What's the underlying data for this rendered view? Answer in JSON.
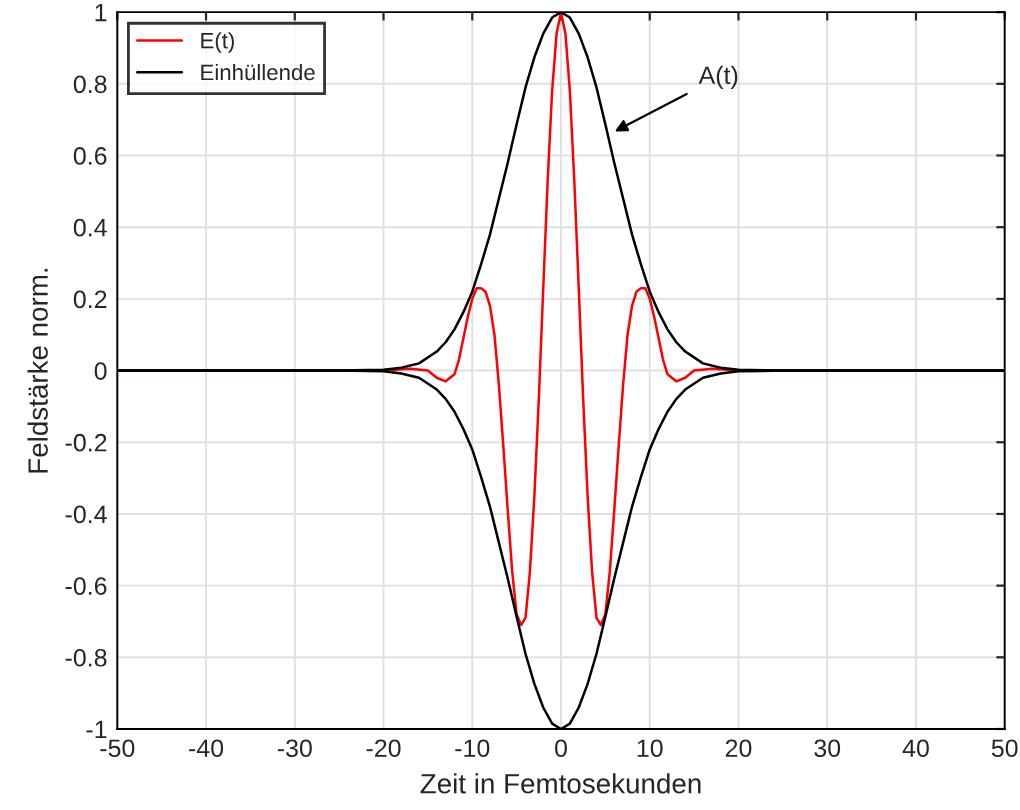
{
  "chart_data": {
    "type": "line",
    "xlabel": "Zeit in Femtosekunden",
    "ylabel": "Feldstärke norm.",
    "xlim": [
      -50,
      50
    ],
    "xticks": [
      -50,
      -40,
      -30,
      -20,
      -10,
      0,
      10,
      20,
      30,
      40,
      50
    ],
    "ylim": [
      -1,
      1
    ],
    "yticks": [
      -1,
      -0.8,
      -0.6,
      -0.4,
      -0.2,
      0,
      0.2,
      0.4,
      0.6,
      0.8,
      1
    ],
    "grid": true,
    "legend": "top left",
    "line_style": "solid",
    "marker": "none",
    "annotations": [
      {
        "text": "A(t)",
        "x": 5.5,
        "y": 0.66
      }
    ],
    "series": [
      {
        "name": "E(t)",
        "color": "#ff0000",
        "x": [
          -50,
          -25,
          -20,
          -17,
          -15,
          -14,
          -13,
          -12,
          -11.5,
          -11,
          -10.5,
          -10,
          -9.5,
          -9,
          -8.5,
          -8,
          -7.5,
          -7,
          -6.5,
          -6,
          -5.5,
          -5,
          -4.5,
          -4,
          -3.5,
          -3,
          -2.5,
          -2,
          -1.5,
          -1,
          -0.5,
          0,
          0.5,
          1,
          1.5,
          2,
          2.5,
          3,
          3.5,
          4,
          4.5,
          5,
          5.5,
          6,
          6.5,
          7,
          7.5,
          8,
          8.5,
          9,
          9.5,
          10,
          10.5,
          11,
          11.5,
          12,
          13,
          14,
          15,
          17,
          20,
          25,
          50
        ],
        "values": [
          0,
          0,
          0,
          0.005,
          0,
          -0.02,
          -0.03,
          -0.01,
          0.03,
          0.09,
          0.15,
          0.2,
          0.23,
          0.23,
          0.22,
          0.18,
          0.1,
          -0.04,
          -0.21,
          -0.39,
          -0.56,
          -0.68,
          -0.71,
          -0.69,
          -0.56,
          -0.35,
          -0.08,
          0.23,
          0.53,
          0.78,
          0.94,
          1,
          0.94,
          0.78,
          0.53,
          0.23,
          -0.08,
          -0.35,
          -0.56,
          -0.69,
          -0.71,
          -0.68,
          -0.56,
          -0.39,
          -0.21,
          -0.04,
          0.1,
          0.18,
          0.22,
          0.23,
          0.23,
          0.2,
          0.15,
          0.09,
          0.03,
          -0.01,
          -0.03,
          -0.02,
          0,
          0.005,
          0,
          0,
          0
        ]
      },
      {
        "name": "Einhüllende",
        "color": "#000000",
        "x": [
          -50,
          -25,
          -20,
          -18,
          -16,
          -14,
          -13,
          -12,
          -11,
          -10,
          -9,
          -8,
          -7,
          -6,
          -5,
          -4,
          -3,
          -2,
          -1,
          0,
          1,
          2,
          3,
          4,
          5,
          6,
          7,
          8,
          9,
          10,
          11,
          12,
          13,
          14,
          16,
          18,
          20,
          25,
          50
        ],
        "values": [
          0,
          0,
          0.002,
          0.008,
          0.02,
          0.053,
          0.079,
          0.115,
          0.163,
          0.22,
          0.297,
          0.38,
          0.48,
          0.58,
          0.687,
          0.79,
          0.874,
          0.94,
          0.985,
          1,
          0.985,
          0.94,
          0.874,
          0.79,
          0.687,
          0.58,
          0.48,
          0.38,
          0.297,
          0.22,
          0.163,
          0.115,
          0.079,
          0.053,
          0.02,
          0.008,
          0.002,
          0,
          0
        ]
      },
      {
        "color": "#000000",
        "x": [
          -50,
          -25,
          -20,
          -18,
          -16,
          -14,
          -13,
          -12,
          -11,
          -10,
          -9,
          -8,
          -7,
          -6,
          -5,
          -4,
          -3,
          -2,
          -1,
          0,
          1,
          2,
          3,
          4,
          5,
          6,
          7,
          8,
          9,
          10,
          11,
          12,
          13,
          14,
          16,
          18,
          20,
          25,
          50
        ],
        "values": [
          0,
          0,
          -0.002,
          -0.008,
          -0.02,
          -0.053,
          -0.079,
          -0.115,
          -0.163,
          -0.22,
          -0.297,
          -0.38,
          -0.48,
          -0.58,
          -0.687,
          -0.79,
          -0.874,
          -0.94,
          -0.985,
          -1,
          -0.985,
          -0.94,
          -0.874,
          -0.79,
          -0.687,
          -0.58,
          -0.48,
          -0.38,
          -0.297,
          -0.22,
          -0.163,
          -0.115,
          -0.079,
          -0.053,
          -0.02,
          -0.008,
          -0.002,
          0,
          0
        ]
      }
    ]
  }
}
